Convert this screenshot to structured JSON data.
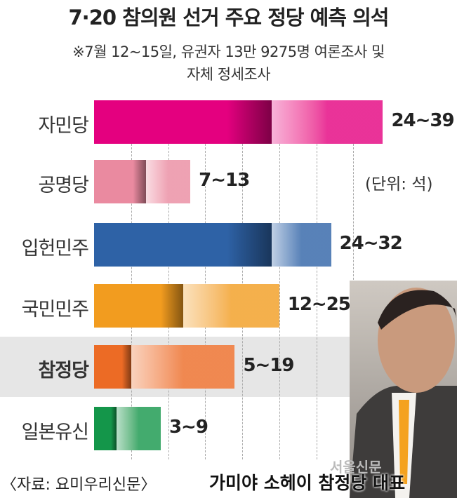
{
  "chart_data": {
    "type": "bar",
    "title": "7·20 참의원 선거 주요 정당 예측 의석",
    "subtitle": [
      "※7월 12~15일, 유권자 13만 9275명 여론조사 및",
      "자체 정세조사"
    ],
    "unit": "(단위: 석)",
    "categories": [
      "자민당",
      "공명당",
      "입헌민주",
      "국민민주",
      "참정당",
      "일본유신"
    ],
    "series": [
      {
        "low": [
          24,
          7,
          24,
          12,
          5,
          3
        ],
        "high": [
          39,
          13,
          32,
          25,
          19,
          9
        ]
      }
    ],
    "labels": [
      "24~39",
      "7~13",
      "24~32",
      "12~25",
      "5~19",
      "3~9"
    ],
    "colors": [
      "#e4007f",
      "#ea8aa0",
      "#2e62a6",
      "#f29c1f",
      "#ec6b25",
      "#14964a"
    ],
    "highlight": "참정당",
    "xlim": [
      0,
      40
    ],
    "grid": true,
    "source": "〈자료: 요미우리신문〉"
  },
  "photo": {
    "caption": "가미야 소헤이 참정당 대표",
    "watermark": "서울신문"
  }
}
